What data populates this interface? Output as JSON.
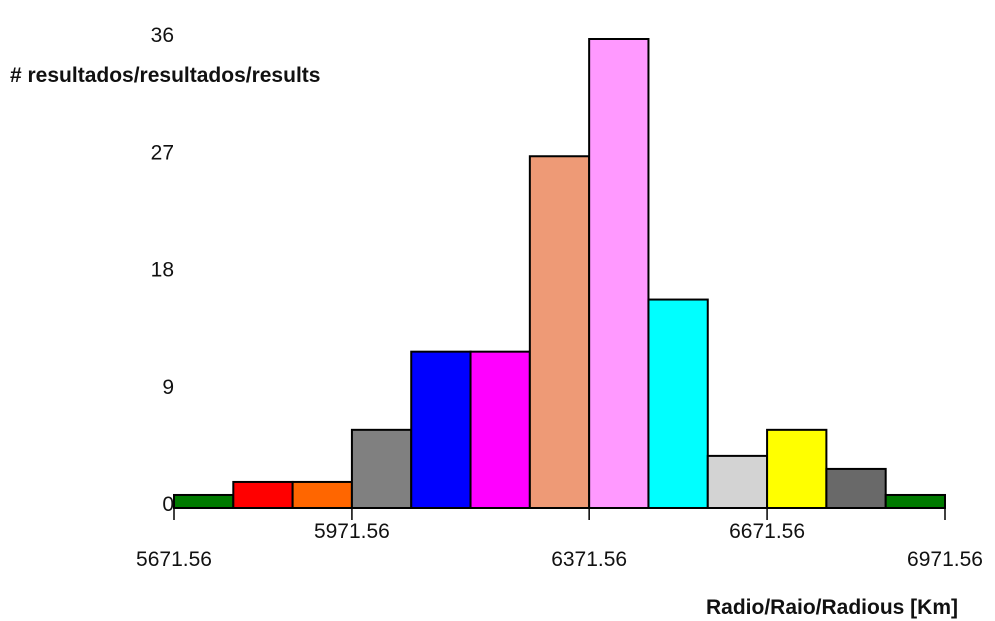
{
  "chart_data": {
    "type": "bar",
    "title": "",
    "ylabel": "# resultados/resultados/results",
    "xlabel": "Radio/Raio/Radious [Km]",
    "ylim": [
      0,
      36
    ],
    "xlim": [
      5671.56,
      6971.56
    ],
    "y_ticks": [
      "0",
      "9",
      "18",
      "27",
      "36"
    ],
    "x_ticks": [
      {
        "value": 5671.56,
        "label": "5671.56",
        "row": 2
      },
      {
        "value": 5971.56,
        "label": "5971.56",
        "row": 1
      },
      {
        "value": 6371.56,
        "label": "6371.56",
        "row": 2
      },
      {
        "value": 6671.56,
        "label": "6671.56",
        "row": 1
      },
      {
        "value": 6971.56,
        "label": "6971.56",
        "row": 2
      }
    ],
    "bin_width": 100,
    "bins": [
      {
        "start": 5671.56,
        "end": 5771.56,
        "value": 1,
        "color": "#007a00"
      },
      {
        "start": 5771.56,
        "end": 5871.56,
        "value": 2,
        "color": "#ff0000"
      },
      {
        "start": 5871.56,
        "end": 5971.56,
        "value": 2,
        "color": "#ff6600"
      },
      {
        "start": 5971.56,
        "end": 6071.56,
        "value": 6,
        "color": "#808080"
      },
      {
        "start": 6071.56,
        "end": 6171.56,
        "value": 12,
        "color": "#0000ff"
      },
      {
        "start": 6171.56,
        "end": 6271.56,
        "value": 12,
        "color": "#ff00ff"
      },
      {
        "start": 6271.56,
        "end": 6371.56,
        "value": 27,
        "color": "#ee9a76"
      },
      {
        "start": 6371.56,
        "end": 6471.56,
        "value": 36,
        "color": "#ff99ff"
      },
      {
        "start": 6471.56,
        "end": 6571.56,
        "value": 16,
        "color": "#00ffff"
      },
      {
        "start": 6571.56,
        "end": 6671.56,
        "value": 4,
        "color": "#d3d3d3"
      },
      {
        "start": 6671.56,
        "end": 6771.56,
        "value": 6,
        "color": "#ffff00"
      },
      {
        "start": 6771.56,
        "end": 6871.56,
        "value": 3,
        "color": "#696969"
      },
      {
        "start": 6871.56,
        "end": 6971.56,
        "value": 1,
        "color": "#007a00"
      }
    ]
  }
}
